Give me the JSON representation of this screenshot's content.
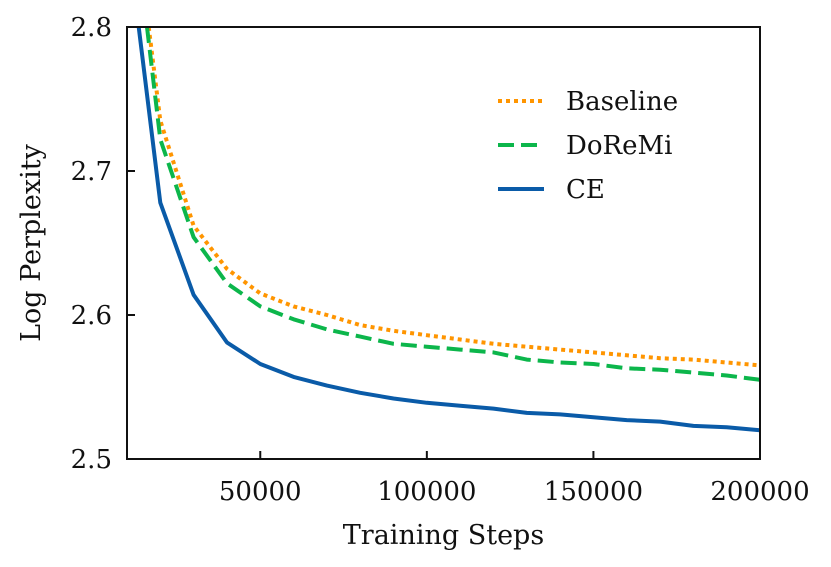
{
  "chart_data": {
    "type": "line",
    "title": "",
    "xlabel": "Training Steps",
    "ylabel": "Log Perplexity",
    "xlim": [
      10000,
      200000
    ],
    "ylim": [
      2.5,
      2.8
    ],
    "xticks": [
      50000,
      100000,
      150000,
      200000
    ],
    "xtick_labels": [
      "50000",
      "100000",
      "150000",
      "200000"
    ],
    "yticks": [
      2.5,
      2.6,
      2.7,
      2.8
    ],
    "ytick_labels": [
      "2.5",
      "2.6",
      "2.7",
      "2.8"
    ],
    "grid": false,
    "legend_position": "top-right",
    "series": [
      {
        "name": "Baseline",
        "color": "#ff9500",
        "style": "dotted",
        "x": [
          16500,
          20000,
          30000,
          40000,
          50000,
          60000,
          70000,
          80000,
          90000,
          100000,
          110000,
          120000,
          130000,
          140000,
          150000,
          160000,
          170000,
          180000,
          190000,
          200000
        ],
        "y": [
          2.8,
          2.735,
          2.662,
          2.632,
          2.615,
          2.606,
          2.6,
          2.593,
          2.589,
          2.586,
          2.583,
          2.58,
          2.578,
          2.576,
          2.574,
          2.572,
          2.57,
          2.569,
          2.567,
          2.565
        ]
      },
      {
        "name": "DoReMi",
        "color": "#0cb64b",
        "style": "dashed",
        "x": [
          16000,
          20000,
          30000,
          40000,
          50000,
          60000,
          70000,
          80000,
          90000,
          100000,
          110000,
          120000,
          130000,
          140000,
          150000,
          160000,
          170000,
          180000,
          190000,
          200000
        ],
        "y": [
          2.8,
          2.722,
          2.654,
          2.622,
          2.606,
          2.597,
          2.59,
          2.585,
          2.58,
          2.578,
          2.576,
          2.574,
          2.569,
          2.567,
          2.566,
          2.563,
          2.562,
          2.56,
          2.558,
          2.555
        ]
      },
      {
        "name": "CE",
        "color": "#0a5ba8",
        "style": "solid",
        "x": [
          13500,
          20000,
          30000,
          40000,
          50000,
          60000,
          70000,
          80000,
          90000,
          100000,
          110000,
          120000,
          130000,
          140000,
          150000,
          160000,
          170000,
          180000,
          190000,
          200000
        ],
        "y": [
          2.8,
          2.678,
          2.614,
          2.581,
          2.566,
          2.557,
          2.551,
          2.546,
          2.542,
          2.539,
          2.537,
          2.535,
          2.532,
          2.531,
          2.529,
          2.527,
          2.526,
          2.523,
          2.522,
          2.52
        ]
      }
    ]
  }
}
